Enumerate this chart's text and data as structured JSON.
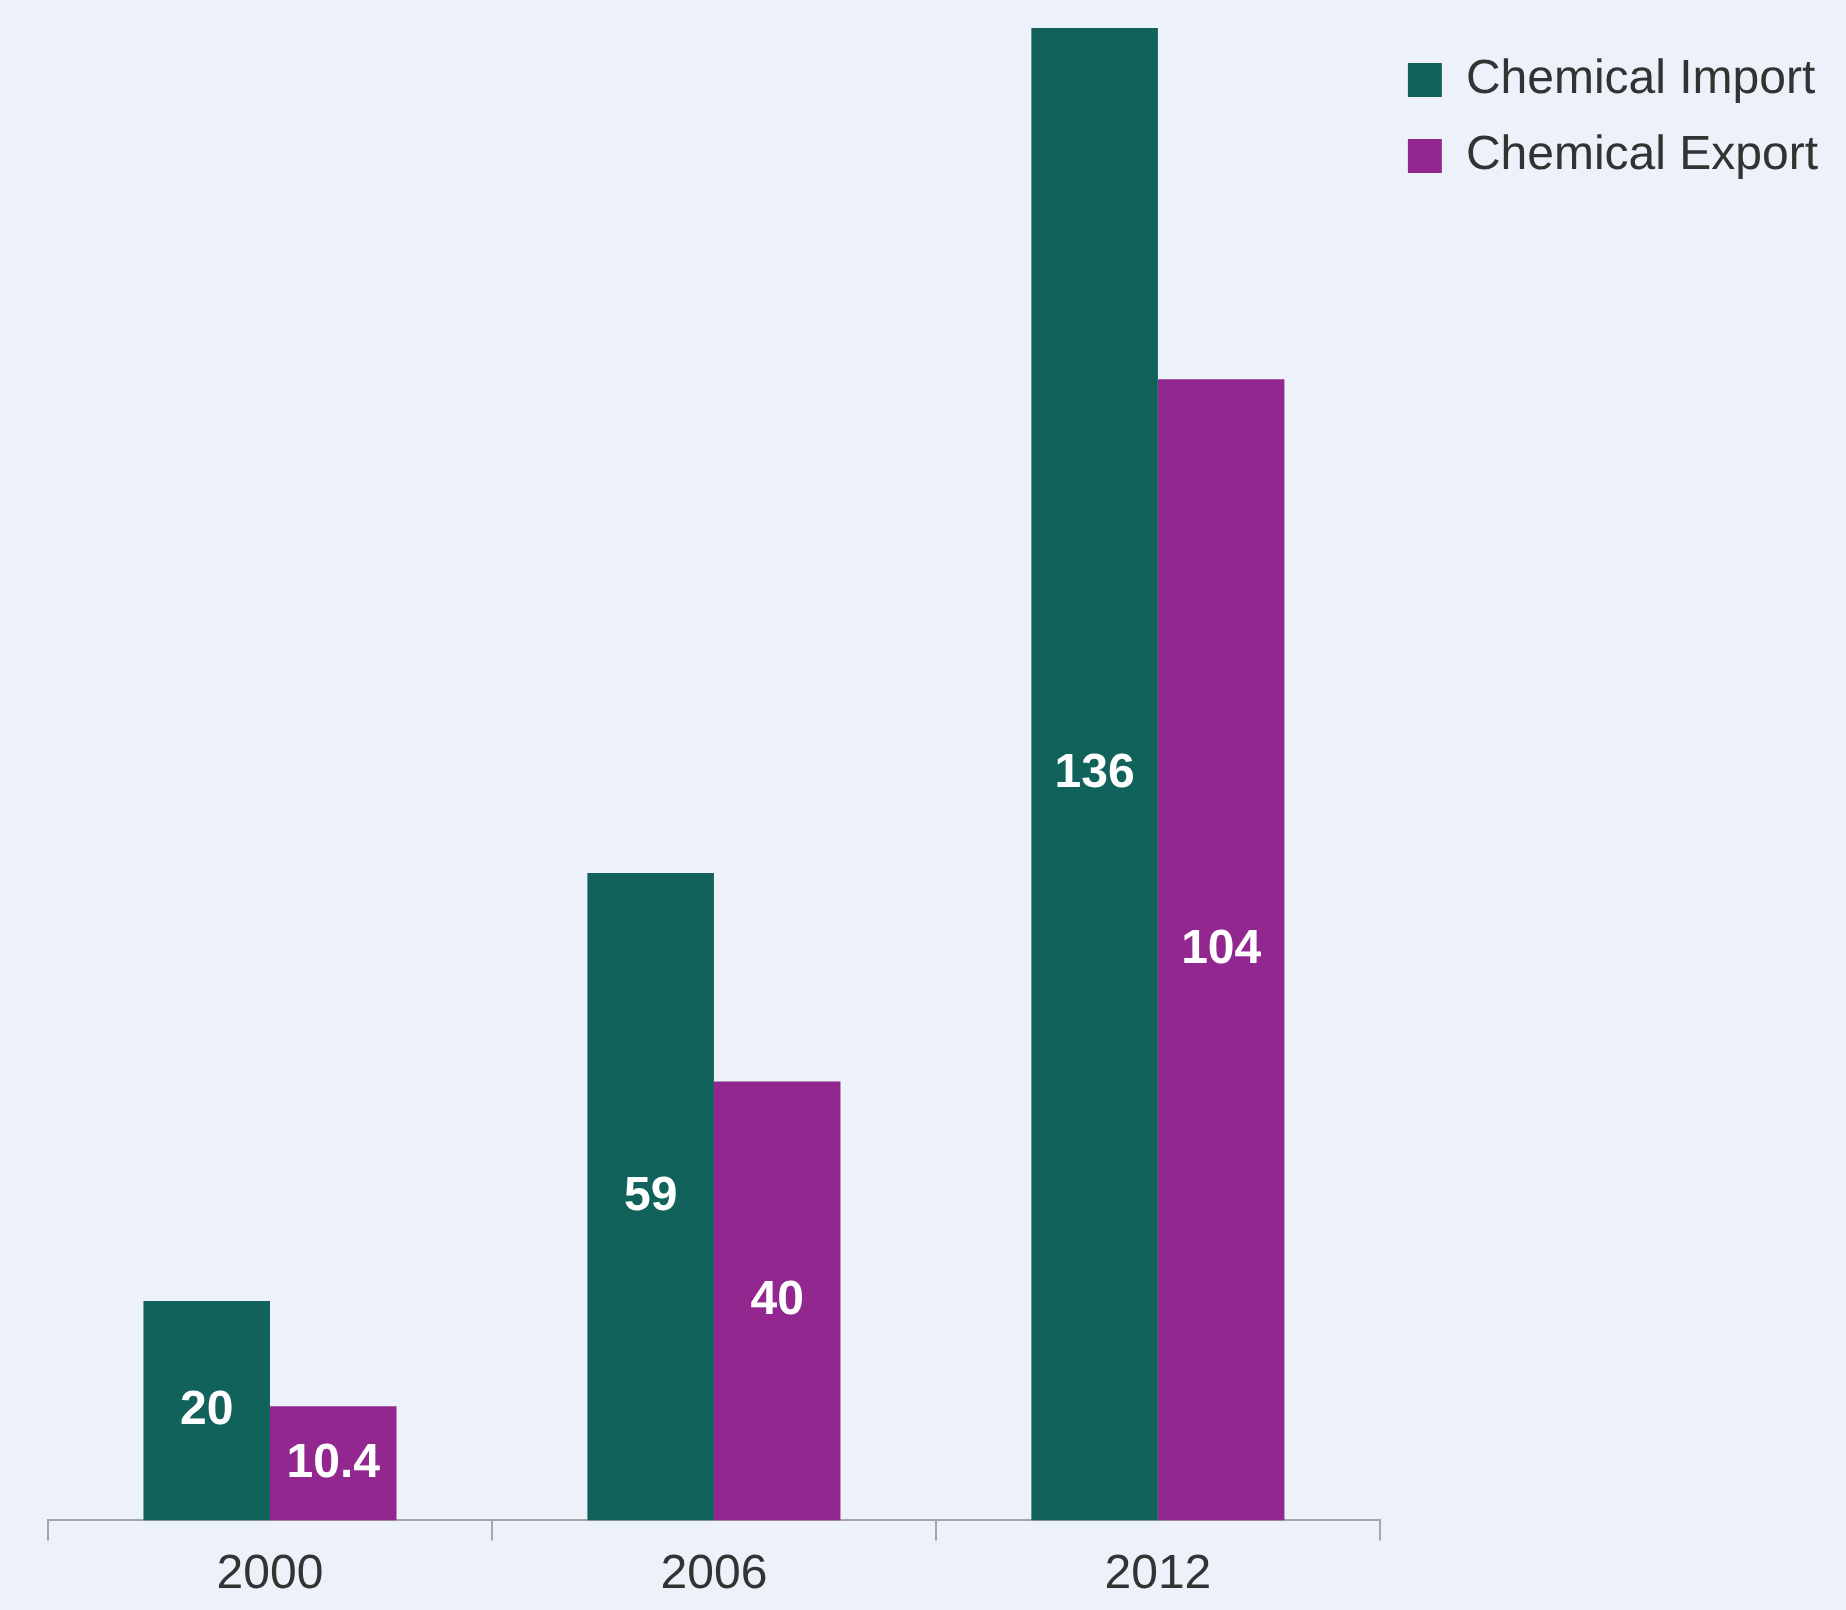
{
  "chart_data": {
    "type": "bar",
    "categories": [
      "2000",
      "2006",
      "2012"
    ],
    "series": [
      {
        "name": "Chemical Import",
        "color": "#11625a",
        "values": [
          20,
          59,
          136
        ]
      },
      {
        "name": "Chemical Export",
        "color": "#92278f",
        "values": [
          10.4,
          40,
          104
        ]
      }
    ],
    "data_labels": true,
    "legend": "top right",
    "grid": false
  }
}
